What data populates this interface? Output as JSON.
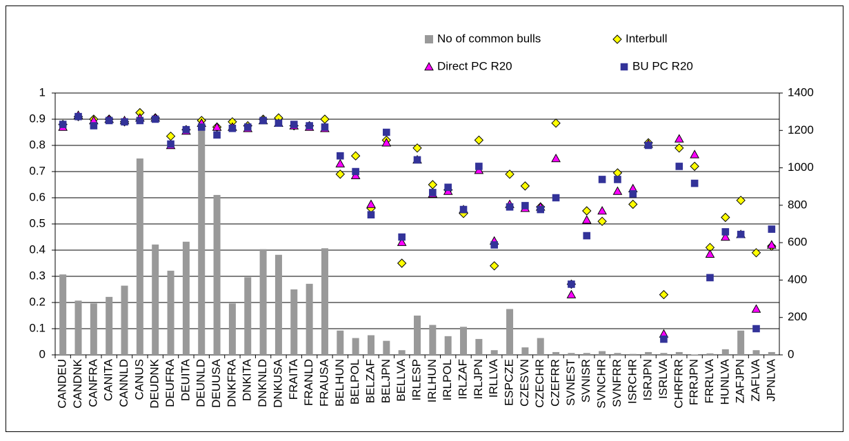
{
  "chart_data": {
    "type": "combo",
    "categories": [
      "CANDEU",
      "CANDNK",
      "CANFRA",
      "CANITA",
      "CANNLD",
      "CANUS",
      "DEUDNK",
      "DEUFRA",
      "DEUITA",
      "DEUNLD",
      "DEUUSA",
      "DNKFRA",
      "DNKITA",
      "DNKNLD",
      "DNKUSA",
      "FRAITA",
      "FRANLD",
      "FRAUSA",
      "BELHUN",
      "BELPOL",
      "BELZAF",
      "BELJPN",
      "BELLVA",
      "IRLESP",
      "IRLHUN",
      "IRLPOL",
      "IRLZAF",
      "IRLJPN",
      "IRLLVA",
      "ESPCZE",
      "CZESVN",
      "CZECHR",
      "CZEFRR",
      "SVNEST",
      "SVNISR",
      "SVNCHR",
      "SVNFRR",
      "ISRCHR",
      "ISRJPN",
      "ISRLVA",
      "CHRFRR",
      "FRRJPN",
      "FRRLVA",
      "HUNLVA",
      "ZAFJPN",
      "ZAFLVA",
      "JPNLVA"
    ],
    "series": [
      {
        "name": "No of common bulls",
        "type": "bar",
        "axis": "y2",
        "color": "#999999",
        "values": [
          430,
          290,
          275,
          310,
          370,
          1050,
          590,
          450,
          605,
          1235,
          855,
          275,
          415,
          565,
          535,
          350,
          380,
          570,
          130,
          90,
          105,
          75,
          25,
          210,
          160,
          100,
          150,
          85,
          25,
          245,
          40,
          90,
          15,
          10,
          10,
          20,
          10,
          5,
          15,
          10,
          15,
          2,
          8,
          30,
          130,
          25,
          15
        ]
      },
      {
        "name": "Interbull",
        "type": "scatter",
        "marker": "diamond",
        "color": "#ffff00",
        "values": [
          0.88,
          0.91,
          0.9,
          0.9,
          0.89,
          0.925,
          0.905,
          0.835,
          0.86,
          0.895,
          0.87,
          0.89,
          0.875,
          0.9,
          0.905,
          0.875,
          0.875,
          0.9,
          0.69,
          0.76,
          0.56,
          0.82,
          0.35,
          0.79,
          0.65,
          0.63,
          0.54,
          0.82,
          0.34,
          0.69,
          0.645,
          0.565,
          0.885,
          0.27,
          0.55,
          0.51,
          0.695,
          0.575,
          0.81,
          0.23,
          0.79,
          0.72,
          0.41,
          0.525,
          0.59,
          0.39,
          0.415
        ]
      },
      {
        "name": "Direct PC R20",
        "type": "scatter",
        "marker": "triangle",
        "color": "#ff00ff",
        "values": [
          0.87,
          0.915,
          0.895,
          0.9,
          0.895,
          0.905,
          0.905,
          0.8,
          0.855,
          0.885,
          0.87,
          0.87,
          0.865,
          0.895,
          0.885,
          0.875,
          0.87,
          0.865,
          0.73,
          0.685,
          0.575,
          0.81,
          0.43,
          0.745,
          0.615,
          0.625,
          0.555,
          0.705,
          0.435,
          0.575,
          0.56,
          0.565,
          0.75,
          0.23,
          0.515,
          0.55,
          0.625,
          0.635,
          0.805,
          0.08,
          0.825,
          0.765,
          0.385,
          0.45,
          0.46,
          0.175,
          0.42
        ]
      },
      {
        "name": "BU PC R20",
        "type": "scatter",
        "marker": "square",
        "color": "#333399",
        "values": [
          0.88,
          0.91,
          0.875,
          0.895,
          0.89,
          0.895,
          0.9,
          0.805,
          0.86,
          0.87,
          0.84,
          0.865,
          0.87,
          0.895,
          0.885,
          0.88,
          0.875,
          0.87,
          0.76,
          0.7,
          0.535,
          0.85,
          0.45,
          0.745,
          0.62,
          0.64,
          0.555,
          0.72,
          0.42,
          0.565,
          0.57,
          0.555,
          0.6,
          0.27,
          0.455,
          0.67,
          0.67,
          0.615,
          0.8,
          0.06,
          0.72,
          0.655,
          0.295,
          0.47,
          0.46,
          0.1,
          0.48
        ]
      }
    ],
    "ylim": [
      0,
      1
    ],
    "yticks": [
      0,
      0.1,
      0.2,
      0.3,
      0.4,
      0.5,
      0.6,
      0.7,
      0.8,
      0.9,
      1
    ],
    "y2lim": [
      0,
      1400
    ],
    "y2ticks": [
      0,
      200,
      400,
      600,
      800,
      1000,
      1200,
      1400
    ],
    "grid": true
  }
}
